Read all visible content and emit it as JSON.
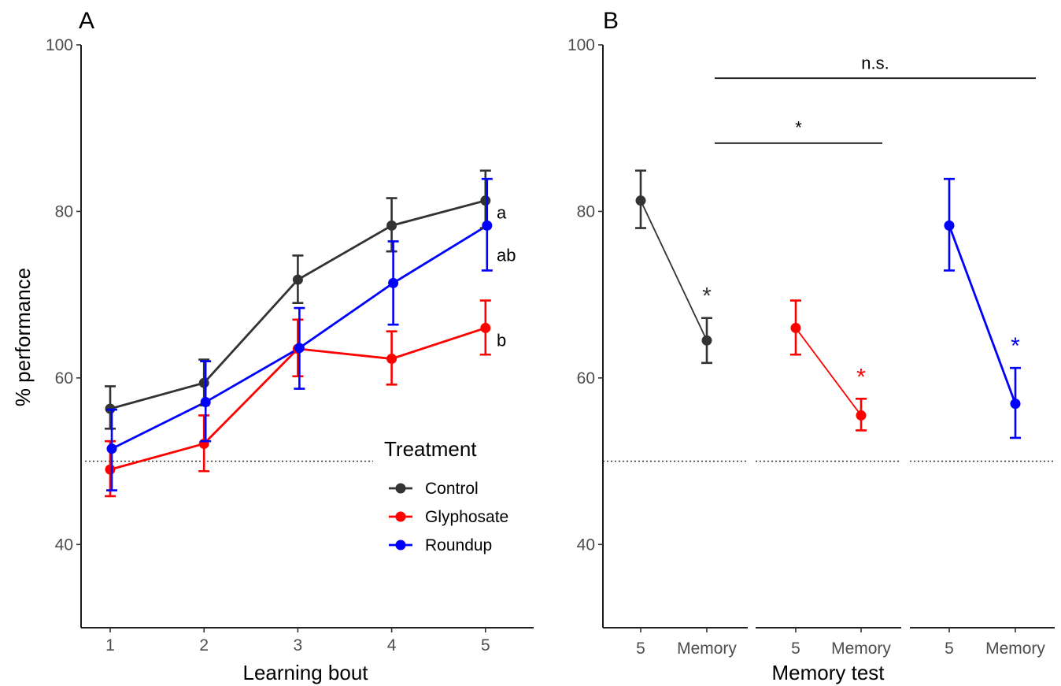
{
  "chart_data": [
    {
      "panel": "A",
      "type": "line",
      "xlabel": "Learning bout",
      "ylabel": "% performance",
      "x": [
        1,
        2,
        3,
        4,
        5
      ],
      "ylim": [
        30,
        100
      ],
      "yticks": [
        40,
        60,
        80,
        100
      ],
      "chance_line": 50,
      "grid": false,
      "legend": {
        "title": "Treatment",
        "position": "bottom-right"
      },
      "series": [
        {
          "name": "Control",
          "color": "#333333",
          "values": [
            56.3,
            59.4,
            71.8,
            78.3,
            81.3
          ],
          "err_low": [
            53.9,
            56.7,
            69.0,
            75.2,
            78.0
          ],
          "err_high": [
            59.0,
            62.2,
            74.7,
            81.6,
            84.9
          ],
          "group_label": "a"
        },
        {
          "name": "Glyphosate",
          "color": "#ff0000",
          "values": [
            49.0,
            52.1,
            63.5,
            62.3,
            66.0
          ],
          "err_low": [
            45.8,
            48.8,
            60.2,
            59.2,
            62.8
          ],
          "err_high": [
            52.4,
            55.5,
            67.0,
            65.6,
            69.3
          ],
          "group_label": "b"
        },
        {
          "name": "Roundup",
          "color": "#0000ff",
          "values": [
            51.5,
            57.1,
            63.6,
            71.4,
            78.3
          ],
          "err_low": [
            46.5,
            52.4,
            58.7,
            66.4,
            72.9
          ],
          "err_high": [
            56.2,
            62.0,
            68.4,
            76.4,
            83.9
          ],
          "group_label": "ab"
        }
      ]
    },
    {
      "panel": "B",
      "type": "line",
      "xlabel": "Memory test",
      "ylabel": "",
      "categories": [
        "5",
        "Memory"
      ],
      "ylim": [
        30,
        100
      ],
      "yticks": [
        40,
        60,
        80,
        100
      ],
      "chance_line": 50,
      "grid": false,
      "facets": [
        {
          "color": "#333333",
          "values": [
            81.3,
            64.5
          ],
          "err_low": [
            78.0,
            61.8
          ],
          "err_high": [
            84.9,
            67.2
          ],
          "star": "*"
        },
        {
          "color": "#ff0000",
          "values": [
            66.0,
            55.5
          ],
          "err_low": [
            62.8,
            53.7
          ],
          "err_high": [
            69.3,
            57.5
          ],
          "star": "*"
        },
        {
          "color": "#0000ff",
          "values": [
            78.3,
            56.9
          ],
          "err_low": [
            72.9,
            52.8
          ],
          "err_high": [
            83.9,
            61.2
          ],
          "star": "*"
        }
      ],
      "comparisons": [
        {
          "label": "n.s.",
          "y": 96.0
        },
        {
          "label": "*",
          "y": 88.2
        }
      ]
    }
  ]
}
